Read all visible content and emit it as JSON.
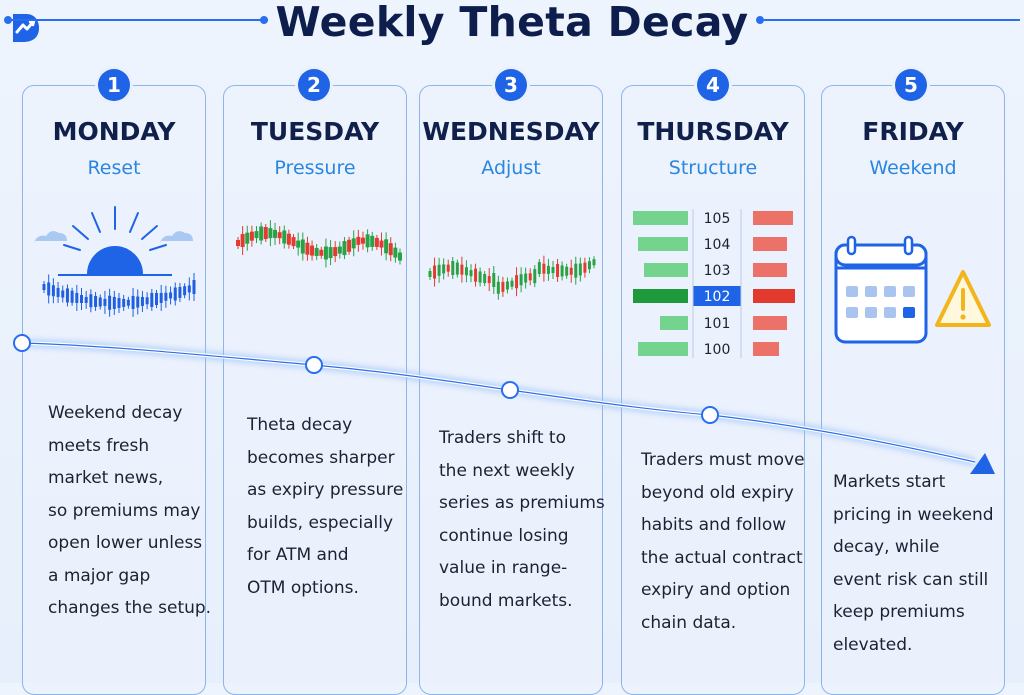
{
  "title": "Weekly Theta Decay",
  "colors": {
    "accent": "#1f63e6",
    "subtitle": "#2a86e0",
    "bull": "#27a345",
    "bear": "#e53a2f",
    "warning": "#f2b51c"
  },
  "days": [
    {
      "num": "1",
      "name": "MONDAY",
      "sub": "Reset",
      "icon": "sunrise-candles-icon",
      "lines": [
        "Weekend decay",
        "meets fresh",
        "market news,",
        "so premiums may",
        "open lower unless",
        "a major gap",
        "changes the setup."
      ]
    },
    {
      "num": "2",
      "name": "TUESDAY",
      "sub": "Pressure",
      "icon": "candlestick-chart-icon",
      "lines": [
        "Theta decay",
        "becomes sharper",
        "as expiry pressure",
        "builds, especially",
        "for ATM and",
        "OTM options."
      ]
    },
    {
      "num": "3",
      "name": "WEDNESDAY",
      "sub": "Adjust",
      "icon": "candlestick-chart-icon",
      "lines": [
        "Traders shift to",
        "the next weekly",
        "series as premiums",
        "continue losing",
        "value in range-",
        "bound markets."
      ]
    },
    {
      "num": "4",
      "name": "THURSDAY",
      "sub": "Structure",
      "icon": "option-chain-icon",
      "lines": [
        "Traders must move",
        "beyond old expiry",
        "habits and follow",
        "the actual contract",
        "expiry and option",
        "chain data."
      ]
    },
    {
      "num": "5",
      "name": "FRIDAY",
      "sub": "Weekend",
      "icon": "calendar-warning-icon",
      "lines": [
        "Markets start",
        "pricing in weekend",
        "decay, while",
        "event risk can still",
        "keep premiums",
        "elevated."
      ]
    }
  ],
  "strikes": [
    "105",
    "104",
    "103",
    "102",
    "101",
    "100"
  ]
}
